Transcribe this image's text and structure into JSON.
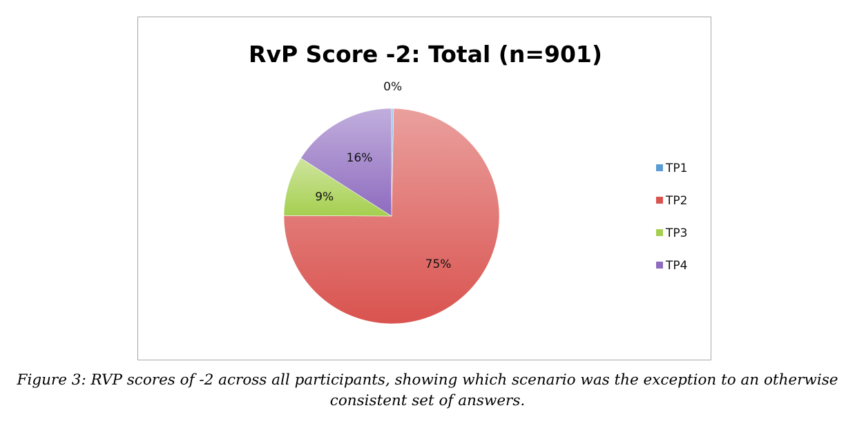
{
  "chart_data": {
    "type": "pie",
    "title": "RvP Score -2: Total (n=901)",
    "categories": [
      "TP1",
      "TP2",
      "TP3",
      "TP4"
    ],
    "values": [
      0.3,
      75,
      9,
      16
    ],
    "labels": [
      "0%",
      "75%",
      "9%",
      "16%"
    ],
    "colors": [
      "#5b9bd5",
      "#d9534f",
      "#a5cf4f",
      "#8e6bbf"
    ],
    "legend": "right"
  },
  "caption": {
    "line1": "Figure 3: RVP scores of -2 across all participants, showing which scenario was the exception to an otherwise",
    "line2": "consistent set of answers."
  }
}
